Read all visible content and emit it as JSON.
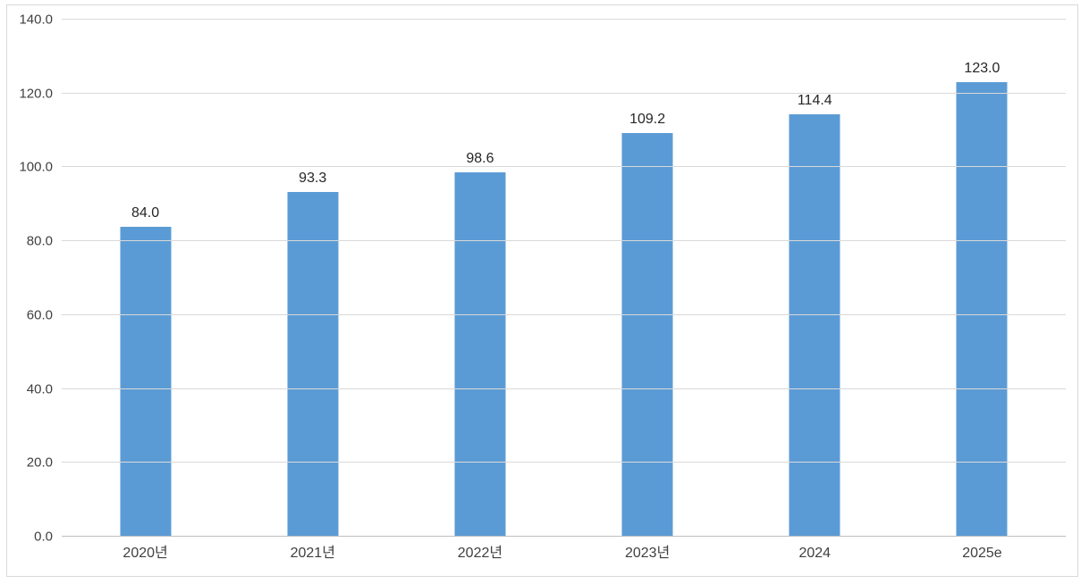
{
  "chart_data": {
    "type": "bar",
    "title": "",
    "xlabel": "",
    "ylabel": "",
    "categories": [
      "2020년",
      "2021년",
      "2022년",
      "2023년",
      "2024",
      "2025e"
    ],
    "values": [
      84.0,
      93.3,
      98.6,
      109.2,
      114.4,
      123.0
    ],
    "data_labels": [
      "84.0",
      "93.3",
      "98.6",
      "109.2",
      "114.4",
      "123.0"
    ],
    "ylim": [
      0,
      140
    ],
    "ytick_step": 20,
    "ytick_labels": [
      "0.0",
      "20.0",
      "40.0",
      "60.0",
      "80.0",
      "100.0",
      "120.0",
      "140.0"
    ],
    "grid": true,
    "legend": false,
    "bar_color": "#5B9BD5",
    "colors": {
      "gridline": "#D9D9D9",
      "axis_line": "#BFBFBF",
      "chart_border": "#D9D9D9",
      "background": "#FFFFFF",
      "axis_text": "#404040",
      "data_label_text": "#262626"
    }
  }
}
